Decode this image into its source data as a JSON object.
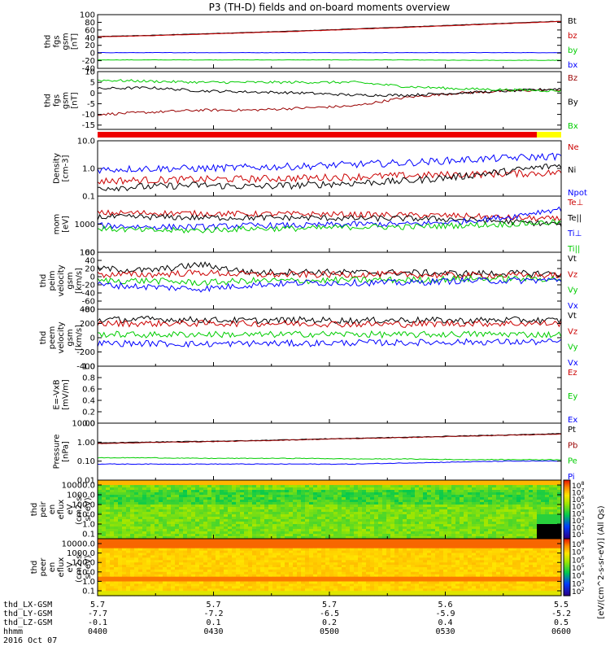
{
  "title": "P3 (TH-D) fields and on-board moments overview",
  "colors": {
    "black": "#000000",
    "red": "#cc0000",
    "green": "#00cc00",
    "blue": "#0000ff",
    "darkred": "#990000"
  },
  "chart_data": [
    {
      "type": "line",
      "ylabel": [
        "thd",
        "fgs",
        "gsm",
        "[nT]"
      ],
      "ylim": [
        -40,
        100
      ],
      "yticks": [
        "100",
        "80",
        "60",
        "40",
        "20",
        "0",
        "-20",
        "-40"
      ],
      "series": [
        {
          "name": "Bt",
          "color": "#000000",
          "values": [
            43,
            46,
            50,
            54,
            58,
            63,
            68,
            73,
            78,
            83
          ]
        },
        {
          "name": "bz",
          "color": "#cc0000",
          "values": [
            42,
            45,
            49,
            53,
            57,
            62,
            67,
            72,
            77,
            82
          ]
        },
        {
          "name": "by",
          "color": "#00cc00",
          "values": [
            -18,
            -18,
            -18,
            -18,
            -18,
            -18,
            -18,
            -19,
            -19,
            -19
          ]
        },
        {
          "name": "bx",
          "color": "#0000ff",
          "values": [
            1,
            1,
            1,
            1,
            1,
            1,
            1,
            1,
            1,
            1
          ]
        }
      ]
    },
    {
      "type": "line",
      "ylabel": [
        "thd",
        "fgs",
        "gsm",
        "[nT]"
      ],
      "ylim": [
        -17,
        10
      ],
      "yticks": [
        "10",
        "5",
        "0",
        "-5",
        "-10",
        "-15"
      ],
      "series": [
        {
          "name": "Bz",
          "color": "#990000",
          "values": [
            -10,
            -9,
            -8,
            -8,
            -7,
            -6,
            -2,
            0,
            1,
            1.5
          ]
        },
        {
          "name": "By",
          "color": "#000000",
          "values": [
            2,
            2.5,
            1,
            0.5,
            0,
            -1,
            -1,
            0,
            1,
            2
          ]
        },
        {
          "name": "Bx",
          "color": "#00cc00",
          "values": [
            6,
            5.5,
            5,
            5,
            5,
            5,
            3,
            2,
            1.5,
            1
          ]
        }
      ]
    },
    {
      "type": "line",
      "log": true,
      "ylabel": [
        "Density",
        "[cm-3]"
      ],
      "ylim": [
        0.1,
        10
      ],
      "yticks": [
        "10.0",
        "1.0",
        "0.1"
      ],
      "series": [
        {
          "name": "Ne",
          "color": "#cc0000",
          "values": [
            0.35,
            0.38,
            0.4,
            0.42,
            0.45,
            0.5,
            0.55,
            0.6,
            0.65,
            0.7
          ]
        },
        {
          "name": "Ni",
          "color": "#000000",
          "values": [
            0.2,
            0.22,
            0.25,
            0.22,
            0.25,
            0.3,
            0.35,
            0.5,
            0.8,
            1.3
          ]
        },
        {
          "name": "Npot",
          "color": "#0000ff",
          "values": [
            0.9,
            1.0,
            1.0,
            1.1,
            1.2,
            1.4,
            1.6,
            2.0,
            2.4,
            2.8
          ]
        }
      ]
    },
    {
      "type": "line",
      "log": true,
      "ylabel": [
        "mom",
        "[eV]"
      ],
      "ylim": [
        100,
        10000
      ],
      "yticks": [
        "1000",
        "100"
      ],
      "series": [
        {
          "name": "Te⊥",
          "color": "#cc0000",
          "values": [
            2500,
            2500,
            2400,
            2300,
            2300,
            2200,
            2100,
            2000,
            1700,
            1500
          ]
        },
        {
          "name": "Te||",
          "color": "#000000",
          "values": [
            1800,
            1800,
            1700,
            1700,
            1700,
            1600,
            1600,
            1500,
            1200,
            1000
          ]
        },
        {
          "name": "Ti⊥",
          "color": "#0000ff",
          "values": [
            900,
            800,
            800,
            900,
            900,
            1000,
            1000,
            1200,
            1800,
            3500
          ]
        },
        {
          "name": "Ti||",
          "color": "#00cc00",
          "values": [
            700,
            600,
            600,
            700,
            700,
            800,
            800,
            900,
            1000,
            1200
          ]
        }
      ]
    },
    {
      "type": "line",
      "ylabel": [
        "thd",
        "peim",
        "velocity",
        "gsm",
        "[km/s]"
      ],
      "ylim": [
        -80,
        60
      ],
      "yticks": [
        "60",
        "40",
        "20",
        "0",
        "-20",
        "-40",
        "-60",
        "-80"
      ],
      "series": [
        {
          "name": "Vt",
          "color": "#000000",
          "values": [
            20,
            15,
            30,
            10,
            12,
            10,
            10,
            8,
            8,
            8
          ]
        },
        {
          "name": "Vz",
          "color": "#cc0000",
          "values": [
            5,
            5,
            10,
            5,
            5,
            5,
            5,
            3,
            3,
            3
          ]
        },
        {
          "name": "Vy",
          "color": "#00cc00",
          "values": [
            -10,
            -10,
            -15,
            -10,
            -10,
            -8,
            -8,
            -5,
            -5,
            -5
          ]
        },
        {
          "name": "Vx",
          "color": "#0000ff",
          "values": [
            -20,
            -25,
            -30,
            -20,
            -15,
            -15,
            -15,
            -10,
            -10,
            -8
          ]
        }
      ]
    },
    {
      "type": "line",
      "ylabel": [
        "thd",
        "peem",
        "velocity",
        "gsm",
        "[km/s]"
      ],
      "ylim": [
        -400,
        400
      ],
      "yticks": [
        "400",
        "200",
        "0",
        "-200",
        "-400"
      ],
      "series": [
        {
          "name": "Vt",
          "color": "#000000",
          "values": [
            250,
            260,
            250,
            240,
            250,
            240,
            250,
            240,
            250,
            240
          ]
        },
        {
          "name": "Vz",
          "color": "#cc0000",
          "values": [
            200,
            200,
            200,
            200,
            200,
            190,
            190,
            200,
            200,
            200
          ]
        },
        {
          "name": "Vy",
          "color": "#00cc00",
          "values": [
            50,
            40,
            50,
            40,
            50,
            50,
            40,
            50,
            50,
            40
          ]
        },
        {
          "name": "Vx",
          "color": "#0000ff",
          "values": [
            -80,
            -80,
            -90,
            -80,
            -80,
            -70,
            -70,
            -60,
            -60,
            -60
          ]
        }
      ]
    },
    {
      "type": "line",
      "ylabel": [
        "E=-VxB",
        "[mV/m]"
      ],
      "ylim": [
        0,
        1
      ],
      "yticks": [
        "1.0",
        "0.8",
        "0.6",
        "0.4",
        "0.2",
        "0.0"
      ],
      "series": [
        {
          "name": "Ez",
          "color": "#cc0000",
          "values": []
        },
        {
          "name": "Ey",
          "color": "#00cc00",
          "values": []
        },
        {
          "name": "Ex",
          "color": "#0000ff",
          "values": []
        }
      ]
    },
    {
      "type": "line",
      "log": true,
      "ylabel": [
        "Pressure",
        "[nPa]"
      ],
      "ylim": [
        0.01,
        10
      ],
      "yticks": [
        "10.00",
        "1.00",
        "0.10",
        "0.01"
      ],
      "series": [
        {
          "name": "Pt",
          "color": "#000000",
          "values": [
            0.9,
            1.0,
            1.1,
            1.2,
            1.4,
            1.6,
            1.8,
            2.1,
            2.4,
            2.8
          ]
        },
        {
          "name": "Pb",
          "color": "#990000",
          "values": [
            0.85,
            0.95,
            1.05,
            1.15,
            1.35,
            1.55,
            1.75,
            2.0,
            2.3,
            2.7
          ]
        },
        {
          "name": "Pe",
          "color": "#00cc00",
          "values": [
            0.15,
            0.15,
            0.14,
            0.14,
            0.14,
            0.13,
            0.13,
            0.12,
            0.12,
            0.12
          ]
        },
        {
          "name": "Pi",
          "color": "#0000ff",
          "values": [
            0.07,
            0.07,
            0.07,
            0.07,
            0.07,
            0.07,
            0.08,
            0.09,
            0.1,
            0.1
          ]
        }
      ]
    },
    {
      "type": "heatmap",
      "ylabel": [
        "thd",
        "peir",
        "en",
        "eflux",
        "eV",
        "(cm2-s-",
        "sr-eV)"
      ],
      "yticks": [
        "10000.0",
        "1000.0",
        "100.0",
        "10.0",
        "1.0",
        "0.1"
      ]
    },
    {
      "type": "heatmap",
      "ylabel": [
        "thd",
        "peer",
        "en",
        "eflux",
        "eV",
        "(cm2-s-",
        "sr-eV)"
      ],
      "yticks": [
        "10000.0",
        "1000.0",
        "100.0",
        "10.0",
        "1.0",
        "0.1"
      ]
    }
  ],
  "colorbar": {
    "label": "[eV/(cm^2-s-sr-eV)] (All Qs)",
    "ticks1": [
      "10^8",
      "10^7",
      "10^6",
      "10^5",
      "10^4",
      "10^3",
      "10^2",
      "10^1"
    ],
    "ticks2": [
      "10^8",
      "10^7",
      "10^6",
      "10^5",
      "10^4",
      "10^3",
      "10^2"
    ]
  },
  "xaxis": {
    "rows": [
      {
        "label": "thd_LX-GSM",
        "values": [
          "5.7",
          "5.7",
          "5.7",
          "5.6",
          "5.5"
        ]
      },
      {
        "label": "thd_LY-GSM",
        "values": [
          "-7.7",
          "-7.2",
          "-6.5",
          "-5.9",
          "-5.2"
        ]
      },
      {
        "label": "thd_LZ-GSM",
        "values": [
          "-0.1",
          "0.1",
          "0.2",
          "0.4",
          "0.5"
        ]
      },
      {
        "label": "hhmm",
        "values": [
          "0400",
          "0430",
          "0500",
          "0530",
          "0600"
        ]
      }
    ],
    "date": "2016 Oct 07"
  }
}
